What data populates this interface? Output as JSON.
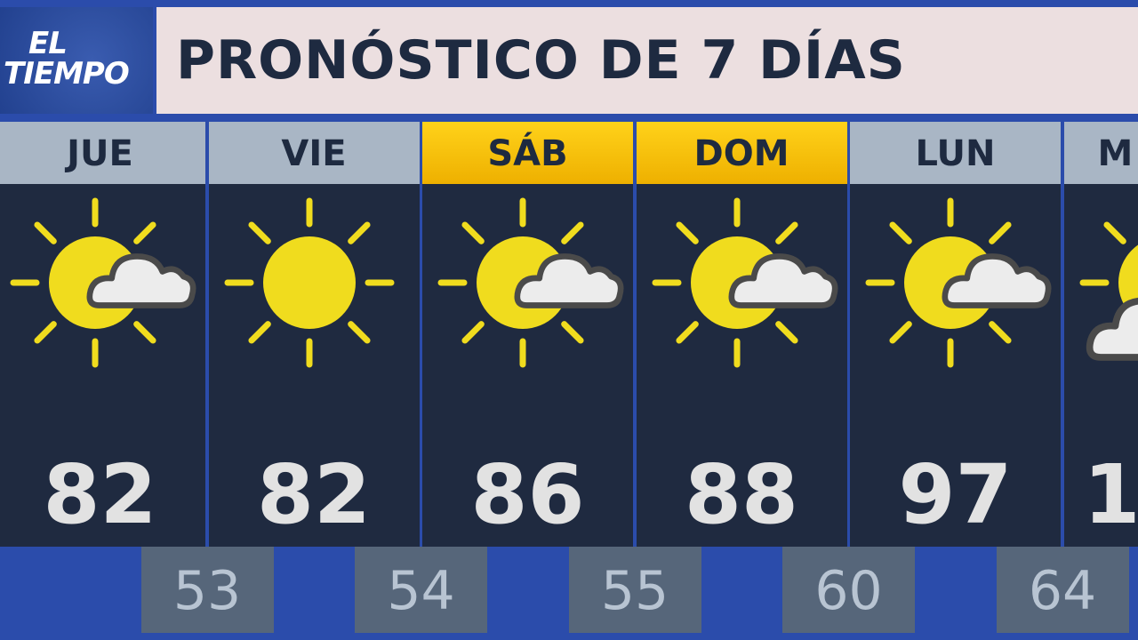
{
  "logo": {
    "line1": "EL",
    "line2": "TIEMPO"
  },
  "title": "PRONÓSTICO DE 7 DÍAS",
  "colors": {
    "background": "#2b4cab",
    "day_header": "#a9b6c5",
    "weekend_header": "#f6c400",
    "panel": "#1f2a40",
    "low_box": "#56667a",
    "sun": "#f0dc1e",
    "cloud": "#ececec"
  },
  "days": [
    {
      "label": "JUE",
      "icon": "partly-cloudy-icon",
      "high": "82",
      "low": "53"
    },
    {
      "label": "VIE",
      "icon": "sunny-icon",
      "high": "82",
      "low": "54"
    },
    {
      "label": "SÁB",
      "icon": "partly-cloudy-icon",
      "high": "86",
      "low": "55",
      "weekend": true
    },
    {
      "label": "DOM",
      "icon": "partly-cloudy-icon",
      "high": "88",
      "low": "60",
      "weekend": true
    },
    {
      "label": "LUN",
      "icon": "partly-cloudy-icon",
      "high": "97",
      "low": "64"
    },
    {
      "label": "M",
      "icon": "mostly-cloudy-icon",
      "high": "1"
    }
  ]
}
